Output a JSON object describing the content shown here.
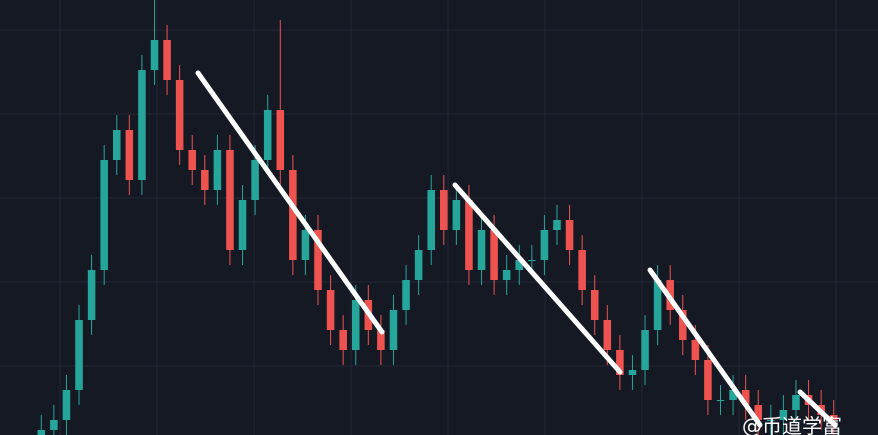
{
  "chart_data": {
    "type": "candlestick",
    "up_color": "#26a69a",
    "down_color": "#ef5350",
    "ylim": [
      0,
      435
    ],
    "open": [
      0,
      5,
      15,
      45,
      115,
      165,
      275,
      305,
      255,
      365,
      395,
      355,
      285,
      265,
      245,
      285,
      185,
      235,
      275,
      325,
      265,
      175,
      205,
      145,
      105,
      85,
      135,
      105,
      85,
      125,
      155,
      185,
      245,
      205,
      235,
      165,
      205,
      155,
      165,
      175,
      175,
      205,
      215,
      185,
      145,
      115,
      85,
      60,
      65,
      105,
      155,
      125,
      95,
      75,
      35,
      35,
      45,
      30,
      15,
      15,
      25,
      40,
      30,
      20
    ],
    "high": [
      20,
      30,
      60,
      130,
      180,
      290,
      320,
      320,
      380,
      435,
      410,
      370,
      300,
      280,
      300,
      300,
      250,
      290,
      340,
      415,
      280,
      220,
      220,
      160,
      120,
      150,
      150,
      120,
      140,
      170,
      200,
      260,
      260,
      250,
      250,
      220,
      220,
      180,
      190,
      190,
      220,
      230,
      230,
      200,
      160,
      130,
      100,
      80,
      120,
      170,
      170,
      140,
      110,
      90,
      50,
      60,
      60,
      45,
      30,
      40,
      55,
      55,
      45,
      35
    ],
    "low": [
      0,
      0,
      0,
      30,
      100,
      150,
      260,
      240,
      240,
      350,
      340,
      270,
      250,
      230,
      230,
      170,
      170,
      220,
      260,
      250,
      160,
      160,
      130,
      90,
      70,
      70,
      90,
      70,
      70,
      110,
      140,
      170,
      190,
      190,
      150,
      150,
      140,
      140,
      150,
      160,
      160,
      190,
      170,
      130,
      100,
      70,
      45,
      45,
      50,
      90,
      110,
      80,
      60,
      20,
      20,
      20,
      15,
      0,
      0,
      0,
      10,
      15,
      5,
      0
    ],
    "close": [
      5,
      15,
      45,
      115,
      165,
      275,
      305,
      255,
      365,
      395,
      355,
      285,
      265,
      245,
      285,
      185,
      235,
      275,
      325,
      265,
      175,
      205,
      145,
      105,
      85,
      135,
      105,
      85,
      125,
      155,
      185,
      245,
      205,
      235,
      165,
      205,
      155,
      165,
      175,
      175,
      205,
      215,
      185,
      145,
      115,
      85,
      60,
      65,
      105,
      155,
      125,
      95,
      75,
      35,
      35,
      45,
      30,
      15,
      15,
      25,
      40,
      30,
      20,
      15
    ]
  },
  "watermark": "@币道学富"
}
